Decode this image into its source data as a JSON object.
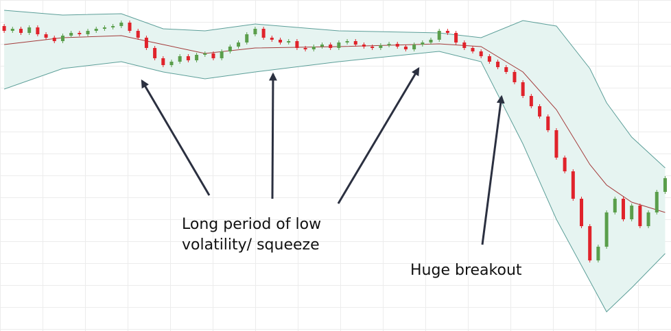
{
  "chart_data": {
    "type": "candlestick",
    "x": [
      0,
      1,
      2,
      3,
      4,
      5,
      6,
      7,
      8,
      9,
      10,
      11,
      12,
      13,
      14,
      15,
      16,
      17,
      18,
      19,
      20,
      21,
      22,
      23,
      24,
      25,
      26,
      27,
      28,
      29,
      30,
      31,
      32,
      33,
      34,
      35,
      36,
      37,
      38,
      39,
      40,
      41,
      42,
      43,
      44,
      45,
      46,
      47,
      48,
      49,
      50,
      51,
      52,
      53,
      54,
      55,
      56,
      57,
      58,
      59,
      60,
      61,
      62,
      63,
      64,
      65,
      66,
      67,
      68,
      69,
      70,
      71,
      72,
      73,
      74,
      75,
      76,
      77,
      78,
      79
    ],
    "open": [
      445,
      438,
      441,
      435,
      443,
      433,
      428,
      423,
      431,
      435,
      433,
      438,
      441,
      443,
      445,
      450,
      438,
      428,
      413,
      398,
      388,
      393,
      401,
      395,
      403,
      405,
      398,
      408,
      415,
      421,
      433,
      441,
      428,
      425,
      421,
      423,
      413,
      411,
      415,
      418,
      413,
      421,
      423,
      418,
      415,
      413,
      417,
      419,
      415,
      411,
      418,
      421,
      425,
      438,
      435,
      421,
      413,
      408,
      401,
      393,
      385,
      378,
      363,
      343,
      328,
      313,
      293,
      253,
      233,
      193,
      153,
      103,
      123,
      173,
      193,
      163,
      183,
      153,
      173,
      203
    ],
    "high": [
      448,
      444,
      444,
      446,
      446,
      436,
      431,
      434,
      438,
      438,
      441,
      444,
      446,
      448,
      453,
      453,
      441,
      431,
      416,
      401,
      396,
      404,
      404,
      406,
      408,
      408,
      411,
      418,
      424,
      436,
      444,
      444,
      431,
      428,
      426,
      426,
      416,
      418,
      421,
      421,
      424,
      426,
      426,
      421,
      418,
      420,
      422,
      422,
      418,
      421,
      424,
      428,
      441,
      441,
      438,
      424,
      416,
      411,
      404,
      396,
      388,
      381,
      366,
      346,
      331,
      316,
      296,
      256,
      236,
      196,
      156,
      126,
      176,
      196,
      196,
      186,
      186,
      176,
      206,
      226
    ],
    "low": [
      435,
      435,
      432,
      432,
      430,
      425,
      420,
      420,
      428,
      430,
      430,
      435,
      438,
      440,
      442,
      435,
      425,
      410,
      395,
      385,
      385,
      390,
      392,
      392,
      400,
      395,
      395,
      405,
      412,
      418,
      430,
      425,
      422,
      418,
      418,
      410,
      408,
      408,
      412,
      410,
      410,
      418,
      415,
      412,
      410,
      410,
      414,
      412,
      408,
      408,
      415,
      418,
      422,
      432,
      418,
      410,
      405,
      398,
      390,
      382,
      375,
      360,
      340,
      325,
      310,
      290,
      250,
      230,
      190,
      150,
      100,
      100,
      120,
      170,
      160,
      160,
      150,
      150,
      170,
      200
    ],
    "close": [
      438,
      441,
      435,
      443,
      433,
      428,
      423,
      431,
      435,
      433,
      438,
      441,
      443,
      445,
      450,
      438,
      428,
      413,
      398,
      388,
      393,
      401,
      395,
      403,
      405,
      398,
      408,
      415,
      421,
      433,
      441,
      428,
      425,
      421,
      423,
      413,
      411,
      415,
      418,
      413,
      421,
      423,
      418,
      415,
      413,
      417,
      419,
      415,
      411,
      418,
      421,
      425,
      438,
      435,
      421,
      413,
      408,
      401,
      393,
      385,
      378,
      363,
      343,
      328,
      313,
      293,
      253,
      233,
      193,
      153,
      103,
      123,
      173,
      193,
      163,
      183,
      153,
      173,
      203,
      223
    ],
    "up_color": "#5a9e4b",
    "down_color": "#e0232b",
    "bands": {
      "x": [
        0,
        7,
        14,
        19,
        24,
        30,
        40,
        52,
        57,
        62,
        66,
        70,
        72,
        75,
        79
      ],
      "upper": [
        468,
        461,
        463,
        441,
        438,
        448,
        438,
        435,
        428,
        453,
        445,
        383,
        333,
        283,
        238
      ],
      "middle": [
        418,
        428,
        431,
        418,
        405,
        413,
        415,
        419,
        415,
        378,
        323,
        243,
        213,
        188,
        173
      ],
      "lower": [
        353,
        383,
        393,
        378,
        368,
        378,
        393,
        408,
        393,
        273,
        163,
        73,
        28,
        63,
        113
      ],
      "band_color": "#5b9e98",
      "fill_color": "#e6f4f1",
      "middle_color": "#a33a3a"
    },
    "xlim": [
      -0.5,
      79.7
    ],
    "ylim": [
      0,
      483
    ],
    "annotations": [
      [
        "Long period of low",
        "volatility/ squeeze"
      ],
      [
        "Huge breakout"
      ]
    ]
  }
}
